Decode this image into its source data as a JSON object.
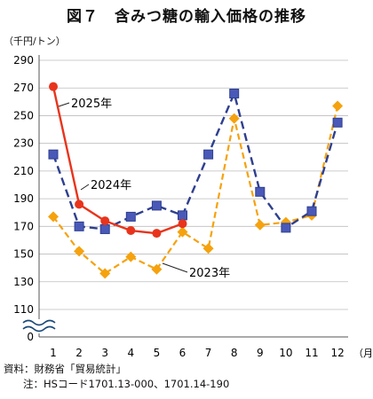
{
  "title": "図７　含みつ糖の輸入価格の推移",
  "notes": {
    "source": "資料：財務省「貿易統計」",
    "note": "注：HSコード1701.13-000、1701.14-190"
  },
  "chart_data": {
    "type": "line",
    "ylabel": "（千円/トン）",
    "xlabel": "（月）",
    "categories": [
      "1",
      "2",
      "3",
      "4",
      "5",
      "6",
      "7",
      "8",
      "9",
      "10",
      "11",
      "12"
    ],
    "y_ticks": [
      "290",
      "270",
      "250",
      "230",
      "210",
      "190",
      "170",
      "150",
      "130",
      "110",
      "0"
    ],
    "ylim": [
      110,
      290
    ],
    "axis_break": true,
    "grid": true,
    "colors": {
      "2025": "#e8341c",
      "2024": "#2e3f8f",
      "2023": "#f5a20e"
    },
    "series": [
      {
        "name": "2025年",
        "values": [
          271,
          186,
          174,
          167,
          165,
          172,
          null,
          null,
          null,
          null,
          null,
          null
        ]
      },
      {
        "name": "2024年",
        "values": [
          222,
          170,
          168,
          177,
          185,
          178,
          222,
          266,
          195,
          169,
          181,
          245
        ]
      },
      {
        "name": "2023年",
        "values": [
          177,
          152,
          136,
          148,
          139,
          166,
          154,
          248,
          171,
          173,
          178,
          257
        ]
      }
    ]
  }
}
